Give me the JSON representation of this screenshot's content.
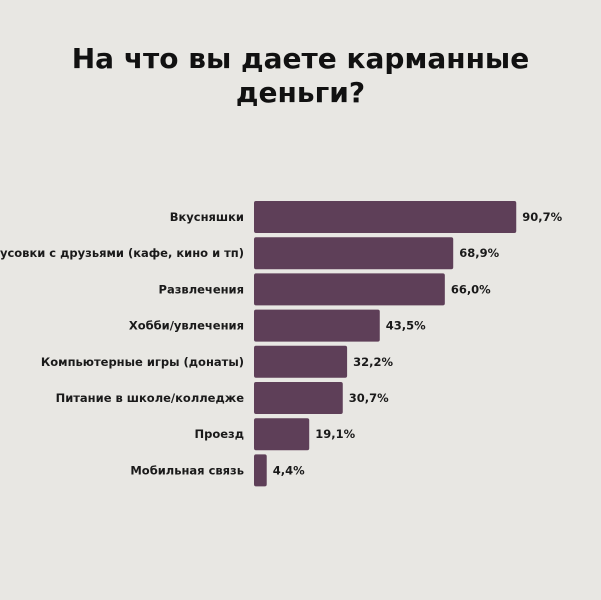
{
  "chart_data": {
    "type": "bar",
    "orientation": "horizontal",
    "title_lines": [
      "На что вы даете карманные",
      "деньги?"
    ],
    "categories": [
      "Вкусняшки",
      "Тусовки с друзьями (кафе, кино и тп)",
      "Развлечения",
      "Хобби/увлечения",
      "Компьютерные игры (донаты)",
      "Питание в школе/колледже",
      "Проезд",
      "Мобильная связь"
    ],
    "values": [
      90.7,
      68.9,
      66.0,
      43.5,
      32.2,
      30.7,
      19.1,
      4.4
    ],
    "value_labels": [
      "90,7%",
      "68,9%",
      "66,0%",
      "43,5%",
      "32,2%",
      "30,7%",
      "19,1%",
      "4,4%"
    ],
    "xlim": [
      0,
      100
    ],
    "grid": false,
    "legend": "none",
    "bar_color": "#5e3f58",
    "background_color": "#e8e7e3"
  }
}
